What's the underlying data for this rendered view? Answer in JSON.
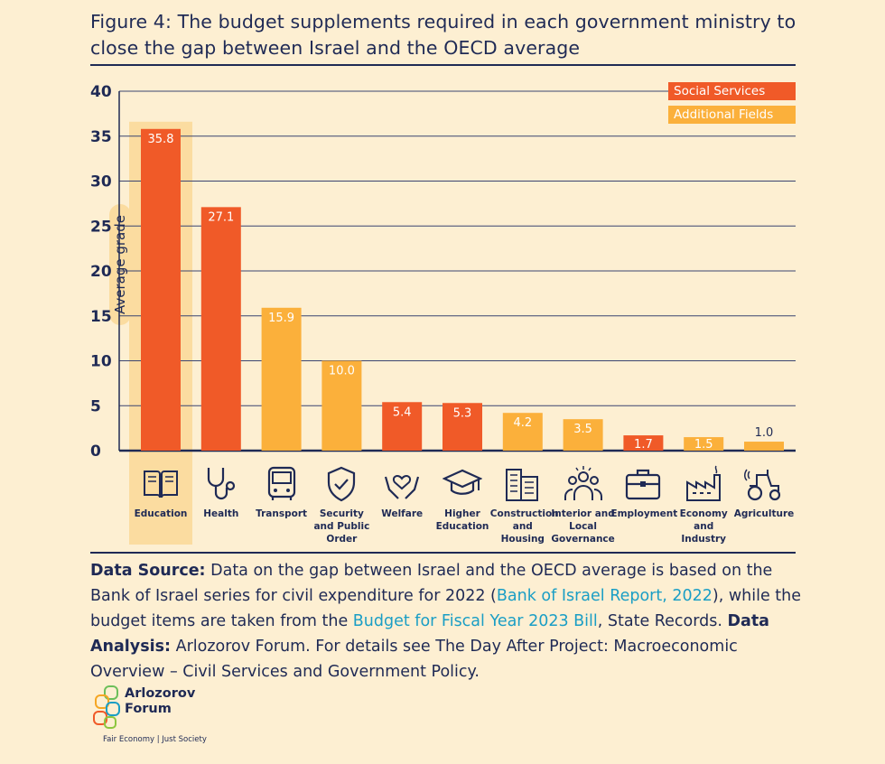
{
  "title": "Figure 4: The budget supplements required in each government ministry to close the gap between Israel and the OECD average",
  "chart_data": {
    "type": "bar",
    "ylabel": "Average grade",
    "ylim": [
      0,
      40
    ],
    "yticks": [
      "0",
      "5",
      "10",
      "15",
      "20",
      "25",
      "30",
      "35",
      "40"
    ],
    "legend": [
      {
        "name": "Social Services",
        "color": "#f05a28"
      },
      {
        "name": "Additional Fields",
        "color": "#fbb03b"
      }
    ],
    "categories": [
      {
        "label": "Education",
        "value": 35.8,
        "value_label": "35.8",
        "group": "Social Services",
        "highlight": true,
        "icon": "book-icon"
      },
      {
        "label": "Health",
        "value": 27.1,
        "value_label": "27.1",
        "group": "Social Services",
        "icon": "stethoscope-icon"
      },
      {
        "label": "Transport",
        "value": 15.9,
        "value_label": "15.9",
        "group": "Additional Fields",
        "icon": "bus-icon"
      },
      {
        "label": "Security and Public Order",
        "value": 10.0,
        "value_label": "10.0",
        "group": "Additional Fields",
        "icon": "shield-icon"
      },
      {
        "label": "Welfare",
        "value": 5.4,
        "value_label": "5.4",
        "group": "Social Services",
        "icon": "hands-heart-icon"
      },
      {
        "label": "Higher Education",
        "value": 5.3,
        "value_label": "5.3",
        "group": "Social Services",
        "icon": "graduation-cap-icon"
      },
      {
        "label": "Construction and Housing",
        "value": 4.2,
        "value_label": "4.2",
        "group": "Additional Fields",
        "icon": "buildings-icon"
      },
      {
        "label": "Interior and Local Governance",
        "value": 3.5,
        "value_label": "3.5",
        "group": "Additional Fields",
        "icon": "people-group-icon"
      },
      {
        "label": "Employment",
        "value": 1.7,
        "value_label": "1.7",
        "group": "Social Services",
        "icon": "briefcase-icon"
      },
      {
        "label": "Economy and Industry",
        "value": 1.5,
        "value_label": "1.5",
        "group": "Additional Fields",
        "icon": "factory-icon"
      },
      {
        "label": "Agriculture",
        "value": 1.0,
        "value_label": "1.0",
        "group": "Additional Fields",
        "icon": "tractor-icon"
      }
    ]
  },
  "source": {
    "label_source": "Data Source:",
    "text_1": " Data on the gap between Israel and the OECD average is based on the Bank of Israel series for civil expenditure for 2022 (",
    "link_1": "Bank of Israel Report, 2022",
    "text_2": "), while the budget items are taken from the ",
    "link_2": "Budget for Fiscal Year 2023 Bill",
    "text_3": ", State Records. ",
    "label_analysis": "Data Analysis:",
    "text_4": " Arlozorov Forum. For details see The Day After Project: Macroeconomic Overview – Civil Services and Government Policy."
  },
  "logo": {
    "line1": "Arlozorov",
    "line2": "Forum",
    "tagline": "Fair Economy | Just Society"
  }
}
